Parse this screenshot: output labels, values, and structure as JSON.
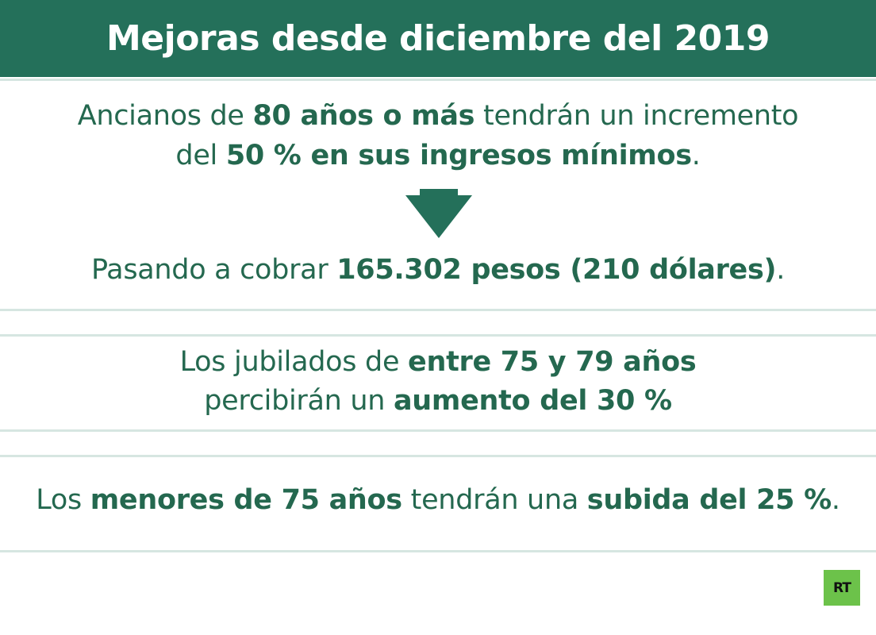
{
  "title": "Mejoras desde diciembre del 2019",
  "block1": {
    "line1": {
      "t1": "Ancianos de ",
      "b1": "80 años o más",
      "t2": " tendrán un incremento"
    },
    "line2": {
      "t1": "del ",
      "b1": "50 % en sus ingresos mínimos",
      "t2": "."
    },
    "line3": {
      "t1": "Pasando a cobrar ",
      "b1": "165.302 pesos (210 dólares)",
      "t2": "."
    }
  },
  "block2": {
    "line1": {
      "t1": "Los jubilados de ",
      "b1": "entre 75 y 79 años"
    },
    "line2": {
      "t1": "percibirán un ",
      "b1": "aumento del 30 %"
    }
  },
  "block3": {
    "line1": {
      "t1": "Los ",
      "b1": "menores de 75 años",
      "t2": " tendrán una ",
      "b2": "subida del 25 %",
      "t3": "."
    }
  },
  "logo": {
    "text": "RT",
    "color": "#6cc24a"
  },
  "colors": {
    "header": "#24705a",
    "text": "#24684f",
    "rule": "#d6e6e1"
  },
  "icons": {
    "arrow": "down-arrow-icon"
  }
}
